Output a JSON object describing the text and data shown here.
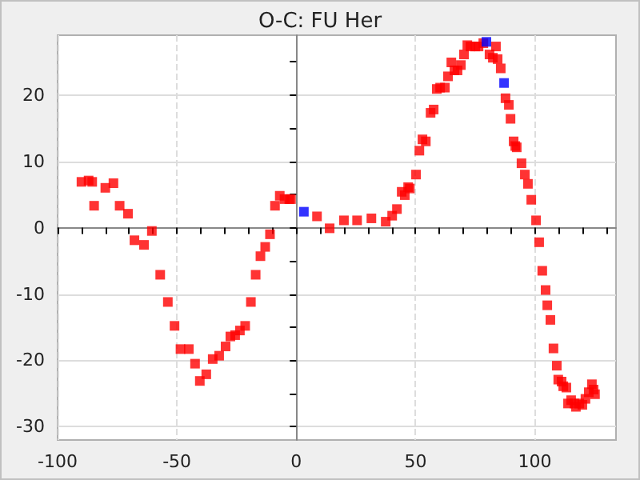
{
  "chart_data": {
    "type": "scatter",
    "title": "O-C: FU Her",
    "marker": "square",
    "grid": true,
    "xlim": [
      -100,
      134
    ],
    "ylim": [
      -32,
      29
    ],
    "xticks": [
      -100,
      {
        "value": -90,
        "label": null
      },
      {
        "value": -80,
        "label": null
      },
      {
        "value": -70,
        "label": null
      },
      {
        "value": -60,
        "label": null
      },
      -50,
      {
        "value": -40,
        "label": null
      },
      {
        "value": -30,
        "label": null
      },
      {
        "value": -20,
        "label": null
      },
      {
        "value": -10,
        "label": null
      },
      0,
      {
        "value": 10,
        "label": null
      },
      {
        "value": 20,
        "label": null
      },
      {
        "value": 30,
        "label": null
      },
      {
        "value": 40,
        "label": null
      },
      50,
      {
        "value": 60,
        "label": null
      },
      {
        "value": 70,
        "label": null
      },
      {
        "value": 80,
        "label": null
      },
      {
        "value": 90,
        "label": null
      },
      100,
      {
        "value": 110,
        "label": null
      },
      {
        "value": 120,
        "label": null
      },
      {
        "value": 130,
        "label": null
      }
    ],
    "yticks": [
      -30,
      {
        "value": -25,
        "label": null
      },
      -20,
      {
        "value": -15,
        "label": null
      },
      -10,
      {
        "value": -5,
        "label": null
      },
      0,
      {
        "value": 5,
        "label": null
      },
      10,
      {
        "value": 15,
        "label": null
      },
      20,
      {
        "value": 25,
        "label": null
      }
    ],
    "series": [
      {
        "color": "#ff0000",
        "x": [
          -90,
          -87,
          -85.5,
          -84.7,
          -80,
          -76.6,
          -74,
          -70.5,
          -67.8,
          -63.8,
          -60.5,
          -57,
          -53.8,
          -51,
          -48.5,
          -45,
          -42.4,
          -40.4,
          -37.7,
          -35,
          -32.3,
          -29.6,
          -27.6,
          -25.6,
          -23.6,
          -21.4,
          -19,
          -17,
          -15,
          -13,
          -11,
          -8.9,
          -6.9,
          -4.9,
          -2.9,
          -2.2,
          8.7,
          14,
          20,
          25.5,
          31.5,
          37.5,
          40.2,
          42.2,
          44.2,
          45.5,
          46.9,
          47.6,
          50.2,
          51.6,
          52.9,
          54.3,
          56.3,
          57.6,
          58.9,
          60.3,
          62.3,
          63.6,
          65,
          66.3,
          67.6,
          69,
          70.3,
          71.7,
          73,
          75,
          76.4,
          78.4,
          81,
          82.4,
          83.7,
          84.4,
          85.7,
          87.7,
          89.1,
          89.8,
          91.1,
          91.8,
          92.4,
          94.4,
          95.8,
          97.1,
          98.5,
          100.5,
          101.8,
          103.1,
          104.5,
          105.2,
          106.5,
          107.8,
          109.2,
          109.8,
          111.2,
          111.9,
          113.2,
          113.9,
          115.2,
          116.6,
          117.2,
          118.6,
          119.9,
          121.2,
          122.6,
          123.9,
          124.6,
          125.2
        ],
        "values": [
          6.9,
          7.1,
          6.9,
          3.3,
          6,
          6.7,
          3.3,
          2.1,
          -1.9,
          -2.6,
          -0.5,
          -7.1,
          -11.2,
          -14.8,
          -18.3,
          -18.3,
          -20.5,
          -23.1,
          -22.1,
          -19.8,
          -19.3,
          -17.9,
          -16.4,
          -16.2,
          -15.5,
          -14.8,
          -11.2,
          -7.1,
          -4.3,
          -2.9,
          -1,
          3.3,
          4.8,
          4.3,
          4.3,
          4.3,
          1.7,
          -0.1,
          1.1,
          1.1,
          1.4,
          0.9,
          1.8,
          2.8,
          5.4,
          4.9,
          6.1,
          5.9,
          8,
          11.6,
          13.3,
          13,
          17.3,
          17.8,
          20.9,
          21.1,
          21.1,
          22.8,
          24.9,
          23.7,
          23.7,
          24.5,
          26.1,
          27.5,
          27.3,
          27.3,
          27.3,
          27.8,
          26.1,
          25.6,
          27.3,
          25.4,
          24,
          19.5,
          18.5,
          16.4,
          13,
          12.3,
          12.1,
          9.7,
          8,
          6.6,
          4.2,
          1.1,
          -2.2,
          -6.5,
          -9.4,
          -11.7,
          -13.9,
          -18.2,
          -20.8,
          -22.9,
          -23.2,
          -23.9,
          -24.1,
          -26.5,
          -26,
          -26.5,
          -27,
          -26.5,
          -26.7,
          -25.8,
          -24.8,
          -23.6,
          -24.4,
          -25.1
        ]
      },
      {
        "color": "#0000ff",
        "x": [
          3.2,
          79.7,
          87.1
        ],
        "values": [
          2.4,
          28,
          21.8
        ]
      }
    ]
  }
}
